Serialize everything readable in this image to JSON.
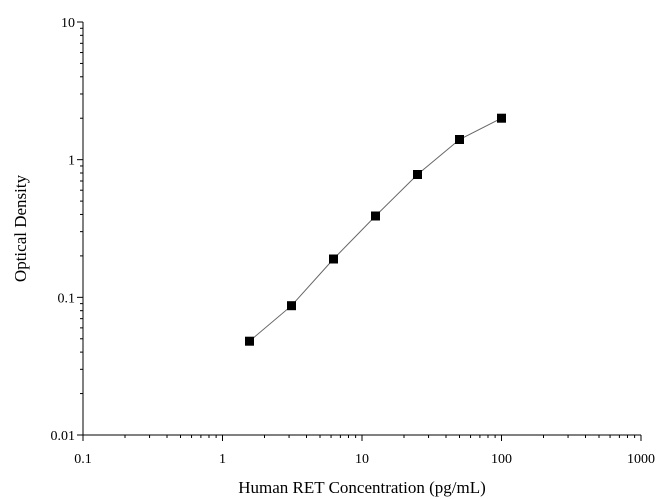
{
  "chart_data": {
    "type": "scatter",
    "title": "",
    "xlabel": "Human RET Concentration (pg/mL)",
    "ylabel": "Optical Density",
    "xscale": "log",
    "yscale": "log",
    "xlim": [
      0.1,
      1000
    ],
    "ylim": [
      0.01,
      10
    ],
    "x_ticks": [
      "0.1",
      "1",
      "10",
      "100",
      "1000"
    ],
    "y_ticks": [
      "0.01",
      "0.1",
      "1",
      "10"
    ],
    "grid": false,
    "legend": "none",
    "marker": "square",
    "connected": true,
    "series": [
      {
        "x": [
          1.5625,
          3.125,
          6.25,
          12.5,
          25,
          50,
          100
        ],
        "y": [
          0.048,
          0.087,
          0.19,
          0.39,
          0.78,
          1.4,
          2.0
        ]
      }
    ],
    "colors": {
      "axis": "#000000",
      "marker": "#000000",
      "line": "#666666"
    }
  }
}
